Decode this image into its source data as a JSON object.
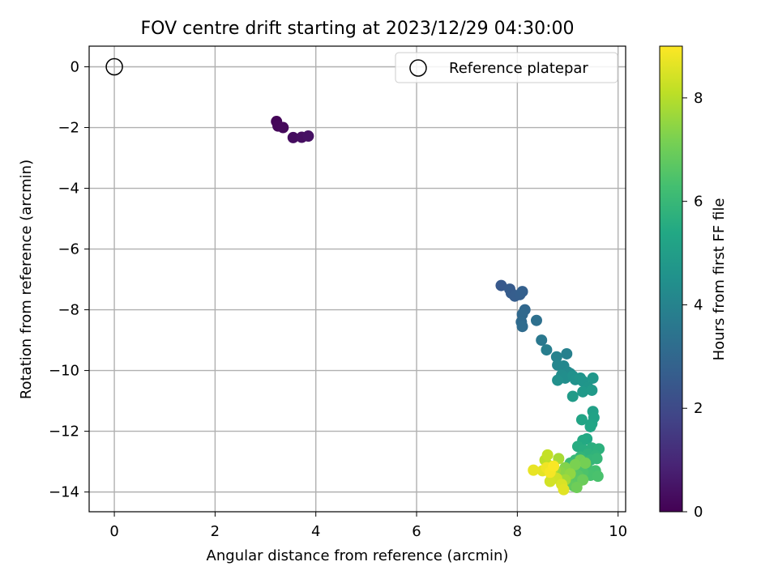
{
  "chart_data": {
    "type": "scatter",
    "title": "FOV centre drift starting at 2023/12/29 04:30:00",
    "xlabel": "Angular distance from reference (arcmin)",
    "ylabel": "Rotation from reference (arcmin)",
    "xlim": [
      -0.5,
      10.15
    ],
    "ylim": [
      -14.65,
      0.68
    ],
    "x_ticks": [
      0,
      2,
      4,
      6,
      8,
      10
    ],
    "y_ticks": [
      0,
      -2,
      -4,
      -6,
      -8,
      -10,
      -12,
      -14
    ],
    "x_tick_labels": [
      "0",
      "2",
      "4",
      "6",
      "8",
      "10"
    ],
    "y_tick_labels": [
      "0",
      "−2",
      "−4",
      "−6",
      "−8",
      "−10",
      "−12",
      "−14"
    ],
    "grid": true,
    "legend": {
      "position": "top-right",
      "entries": [
        "Reference platepar"
      ]
    },
    "reference_point": {
      "x": 0,
      "y": 0
    },
    "colorbar": {
      "label": "Hours from first FF file",
      "colormap": "viridis",
      "range": [
        0,
        9
      ],
      "ticks": [
        0,
        2,
        4,
        6,
        8
      ],
      "tick_labels": [
        "0",
        "2",
        "4",
        "6",
        "8"
      ]
    },
    "points": [
      {
        "x": 3.22,
        "y": -1.8,
        "h": 0.1
      },
      {
        "x": 3.25,
        "y": -1.95,
        "h": 0.15
      },
      {
        "x": 3.35,
        "y": -2.0,
        "h": 0.2
      },
      {
        "x": 3.55,
        "y": -2.33,
        "h": 0.3
      },
      {
        "x": 3.72,
        "y": -2.32,
        "h": 0.35
      },
      {
        "x": 3.85,
        "y": -2.28,
        "h": 0.4
      },
      {
        "x": 7.68,
        "y": -7.2,
        "h": 2.5
      },
      {
        "x": 7.85,
        "y": -7.32,
        "h": 2.55
      },
      {
        "x": 7.88,
        "y": -7.45,
        "h": 2.6
      },
      {
        "x": 7.95,
        "y": -7.55,
        "h": 2.65
      },
      {
        "x": 8.05,
        "y": -7.5,
        "h": 2.7
      },
      {
        "x": 8.1,
        "y": -7.4,
        "h": 2.75
      },
      {
        "x": 8.15,
        "y": -8.0,
        "h": 3.0
      },
      {
        "x": 8.1,
        "y": -8.15,
        "h": 3.05
      },
      {
        "x": 8.08,
        "y": -8.4,
        "h": 3.1
      },
      {
        "x": 8.1,
        "y": -8.55,
        "h": 3.15
      },
      {
        "x": 8.38,
        "y": -8.35,
        "h": 3.3
      },
      {
        "x": 8.48,
        "y": -9.0,
        "h": 3.6
      },
      {
        "x": 8.58,
        "y": -9.32,
        "h": 3.8
      },
      {
        "x": 8.98,
        "y": -9.45,
        "h": 3.9
      },
      {
        "x": 8.78,
        "y": -9.55,
        "h": 3.95
      },
      {
        "x": 8.8,
        "y": -9.82,
        "h": 4.1
      },
      {
        "x": 8.92,
        "y": -9.85,
        "h": 4.15
      },
      {
        "x": 9.0,
        "y": -10.05,
        "h": 4.2
      },
      {
        "x": 9.05,
        "y": -10.1,
        "h": 4.3
      },
      {
        "x": 8.88,
        "y": -10.15,
        "h": 4.35
      },
      {
        "x": 8.95,
        "y": -10.25,
        "h": 4.4
      },
      {
        "x": 8.8,
        "y": -10.32,
        "h": 4.45
      },
      {
        "x": 9.1,
        "y": -10.18,
        "h": 4.5
      },
      {
        "x": 9.15,
        "y": -10.3,
        "h": 4.55
      },
      {
        "x": 9.25,
        "y": -10.25,
        "h": 4.6
      },
      {
        "x": 9.3,
        "y": -10.35,
        "h": 4.65
      },
      {
        "x": 9.4,
        "y": -10.55,
        "h": 4.7
      },
      {
        "x": 9.5,
        "y": -10.25,
        "h": 4.75
      },
      {
        "x": 9.3,
        "y": -10.7,
        "h": 4.8
      },
      {
        "x": 9.48,
        "y": -10.65,
        "h": 4.85
      },
      {
        "x": 9.1,
        "y": -10.85,
        "h": 4.9
      },
      {
        "x": 9.5,
        "y": -11.35,
        "h": 5.1
      },
      {
        "x": 9.52,
        "y": -11.55,
        "h": 5.15
      },
      {
        "x": 9.48,
        "y": -11.75,
        "h": 5.2
      },
      {
        "x": 9.28,
        "y": -11.62,
        "h": 5.25
      },
      {
        "x": 9.45,
        "y": -11.85,
        "h": 5.3
      },
      {
        "x": 9.38,
        "y": -12.25,
        "h": 5.4
      },
      {
        "x": 9.3,
        "y": -12.3,
        "h": 5.45
      },
      {
        "x": 9.2,
        "y": -12.5,
        "h": 5.55
      },
      {
        "x": 9.32,
        "y": -12.62,
        "h": 5.6
      },
      {
        "x": 9.48,
        "y": -12.55,
        "h": 5.65
      },
      {
        "x": 9.62,
        "y": -12.58,
        "h": 5.7
      },
      {
        "x": 9.4,
        "y": -12.75,
        "h": 5.75
      },
      {
        "x": 9.55,
        "y": -12.8,
        "h": 5.8
      },
      {
        "x": 9.25,
        "y": -12.85,
        "h": 5.85
      },
      {
        "x": 9.45,
        "y": -12.95,
        "h": 5.9
      },
      {
        "x": 9.58,
        "y": -12.9,
        "h": 5.95
      },
      {
        "x": 9.35,
        "y": -13.0,
        "h": 6.0
      },
      {
        "x": 9.15,
        "y": -12.95,
        "h": 6.05
      },
      {
        "x": 9.05,
        "y": -13.05,
        "h": 6.1
      },
      {
        "x": 9.22,
        "y": -13.15,
        "h": 6.2
      },
      {
        "x": 9.38,
        "y": -13.2,
        "h": 6.25
      },
      {
        "x": 9.55,
        "y": -13.3,
        "h": 6.3
      },
      {
        "x": 9.45,
        "y": -13.45,
        "h": 6.35
      },
      {
        "x": 9.6,
        "y": -13.48,
        "h": 6.4
      },
      {
        "x": 9.3,
        "y": -13.35,
        "h": 6.45
      },
      {
        "x": 9.1,
        "y": -13.25,
        "h": 6.5
      },
      {
        "x": 9.2,
        "y": -13.45,
        "h": 6.6
      },
      {
        "x": 9.05,
        "y": -13.55,
        "h": 6.65
      },
      {
        "x": 9.22,
        "y": -13.65,
        "h": 6.7
      },
      {
        "x": 9.12,
        "y": -13.8,
        "h": 6.75
      },
      {
        "x": 9.0,
        "y": -13.7,
        "h": 6.8
      },
      {
        "x": 8.9,
        "y": -13.5,
        "h": 6.9
      },
      {
        "x": 9.3,
        "y": -13.6,
        "h": 6.95
      },
      {
        "x": 9.18,
        "y": -13.85,
        "h": 7.0
      },
      {
        "x": 9.25,
        "y": -12.95,
        "h": 7.05
      },
      {
        "x": 9.35,
        "y": -13.05,
        "h": 7.1
      },
      {
        "x": 9.15,
        "y": -13.1,
        "h": 7.2
      },
      {
        "x": 8.95,
        "y": -13.2,
        "h": 7.3
      },
      {
        "x": 8.85,
        "y": -13.35,
        "h": 7.4
      },
      {
        "x": 9.05,
        "y": -13.4,
        "h": 7.5
      },
      {
        "x": 8.75,
        "y": -13.3,
        "h": 7.6
      },
      {
        "x": 8.95,
        "y": -13.6,
        "h": 7.7
      },
      {
        "x": 8.82,
        "y": -12.9,
        "h": 7.8
      },
      {
        "x": 8.7,
        "y": -13.25,
        "h": 7.9
      },
      {
        "x": 8.6,
        "y": -13.1,
        "h": 8.0
      },
      {
        "x": 8.55,
        "y": -12.95,
        "h": 8.1
      },
      {
        "x": 8.6,
        "y": -12.78,
        "h": 8.2
      },
      {
        "x": 8.68,
        "y": -13.45,
        "h": 8.3
      },
      {
        "x": 8.78,
        "y": -13.55,
        "h": 8.35
      },
      {
        "x": 8.65,
        "y": -13.65,
        "h": 8.4
      },
      {
        "x": 8.88,
        "y": -13.75,
        "h": 8.5
      },
      {
        "x": 8.92,
        "y": -13.92,
        "h": 8.6
      },
      {
        "x": 8.5,
        "y": -13.3,
        "h": 8.65
      },
      {
        "x": 8.32,
        "y": -13.28,
        "h": 8.7
      },
      {
        "x": 8.58,
        "y": -13.2,
        "h": 8.8
      },
      {
        "x": 8.65,
        "y": -13.35,
        "h": 8.9
      },
      {
        "x": 8.72,
        "y": -13.15,
        "h": 8.95
      }
    ]
  }
}
